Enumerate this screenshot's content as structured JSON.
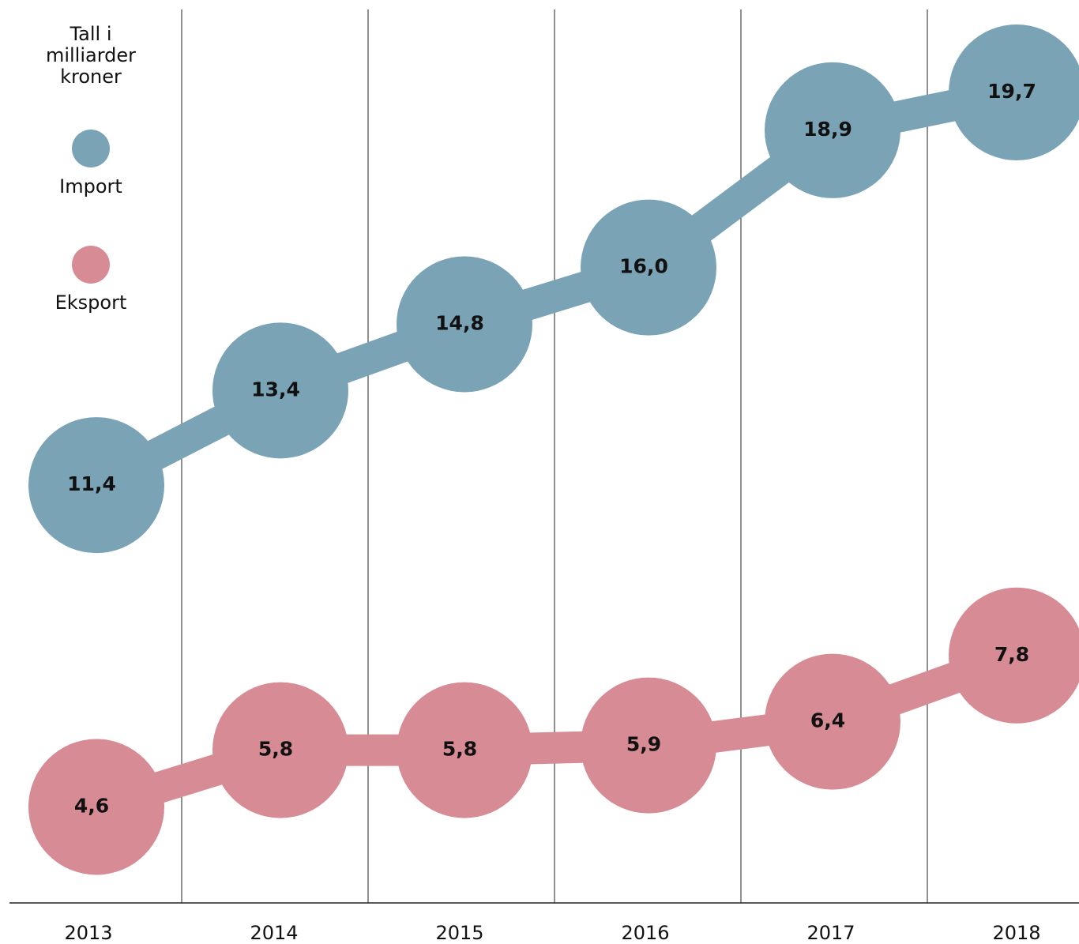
{
  "chart_data": {
    "type": "line",
    "title": "Tall i milliarder kroner",
    "categories": [
      "2013",
      "2014",
      "2015",
      "2016",
      "2017",
      "2018"
    ],
    "series": [
      {
        "name": "Import",
        "color": "#7aa3b5",
        "values": [
          11.4,
          13.4,
          14.8,
          16.0,
          18.9,
          19.7
        ],
        "value_labels": [
          "11,4",
          "13,4",
          "14,8",
          "16,0",
          "18,9",
          "19,7"
        ]
      },
      {
        "name": "Eksport",
        "color": "#d78b94",
        "values": [
          4.6,
          5.8,
          5.8,
          5.9,
          6.4,
          7.8
        ],
        "value_labels": [
          "4,6",
          "5,8",
          "5,8",
          "5,9",
          "6,4",
          "7,8"
        ]
      }
    ],
    "ylim": [
      0,
      20
    ]
  }
}
